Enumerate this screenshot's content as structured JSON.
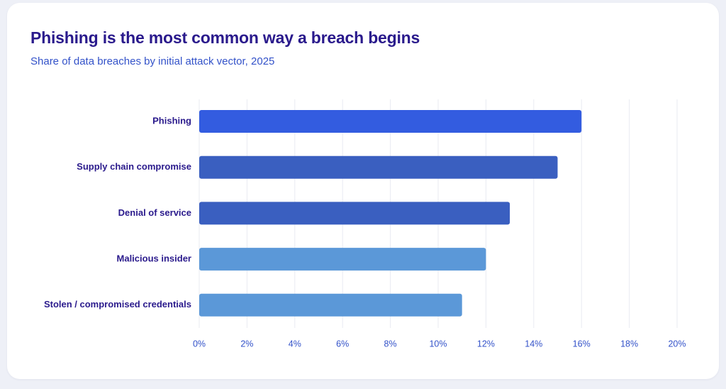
{
  "chart_data": {
    "type": "bar",
    "orientation": "horizontal",
    "title": "Phishing is the most common way a breach begins",
    "subtitle": "Share of data breaches by initial attack vector, 2025",
    "xlabel": "",
    "ylabel": "",
    "categories": [
      "Phishing",
      "Supply chain compromise",
      "Denial of service",
      "Malicious insider",
      "Stolen / compromised credentials"
    ],
    "values": [
      16,
      15,
      13,
      12,
      11
    ],
    "bar_colors": [
      "#335ce0",
      "#3a5fc0",
      "#3a5fc0",
      "#5b98d8",
      "#5b98d8"
    ],
    "xlim": [
      0,
      20
    ],
    "x_ticks": [
      0,
      2,
      4,
      6,
      8,
      10,
      12,
      14,
      16,
      18,
      20
    ],
    "tick_format": "{v}%",
    "grid": true,
    "legend": "none"
  },
  "colors": {
    "title": "#2a1a8c",
    "subtitle": "#3352c9",
    "tick_text": "#3352c9",
    "grid": "#e9ebf2",
    "background": "#eef0f7",
    "card": "#ffffff"
  }
}
